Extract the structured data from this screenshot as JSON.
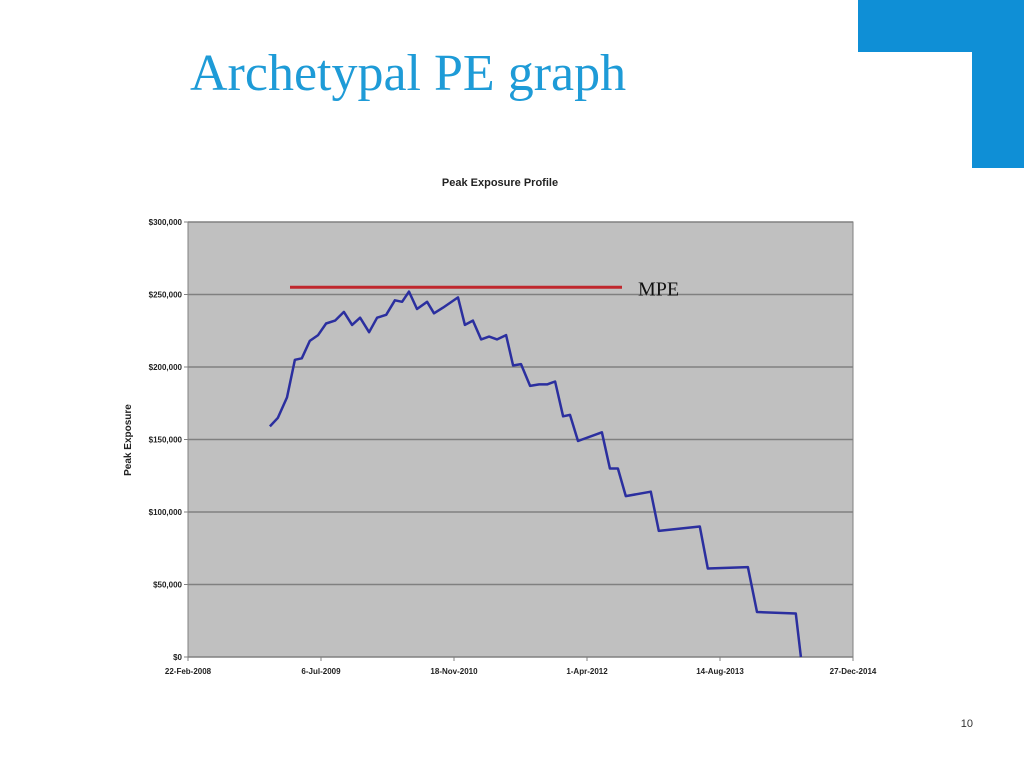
{
  "slide": {
    "title": "Archetypal PE graph",
    "page_number": "10"
  },
  "chart_data": {
    "type": "line",
    "title": "Peak Exposure Profile",
    "y_label": "Peak Exposure",
    "x": [
      39808,
      39838,
      39872,
      39902,
      39928,
      39958,
      39989,
      40019,
      40053,
      40086,
      40117,
      40147,
      40181,
      40211,
      40245,
      40278,
      40305,
      40331,
      40361,
      40399,
      40425,
      40459,
      40515,
      40541,
      40571,
      40602,
      40632,
      40662,
      40696,
      40722,
      40752,
      40786,
      40820,
      40850,
      40880,
      40910,
      40936,
      40966,
      41056,
      41086,
      41116,
      41146,
      41240,
      41270,
      41424,
      41454,
      41605,
      41639,
      41785,
      41804
    ],
    "series": [
      {
        "name": "Peak Exposure",
        "color": "#2b2f9f",
        "values": [
          159000,
          165000,
          179000,
          205000,
          206000,
          218000,
          222000,
          230000,
          232000,
          238000,
          229000,
          234000,
          224000,
          234000,
          236000,
          246000,
          245000,
          252000,
          240000,
          245000,
          237000,
          241000,
          248000,
          229000,
          232000,
          219000,
          221000,
          219000,
          222000,
          201000,
          202000,
          187000,
          188000,
          188000,
          190000,
          166000,
          167000,
          149000,
          155000,
          130000,
          130000,
          111000,
          114000,
          87000,
          90000,
          61000,
          62000,
          31000,
          30000,
          0
        ]
      }
    ],
    "xlim": [
      39500,
      42000
    ],
    "xticks": [
      {
        "value": 39500,
        "label": "22-Feb-2008"
      },
      {
        "value": 40000,
        "label": "6-Jul-2009"
      },
      {
        "value": 40500,
        "label": "18-Nov-2010"
      },
      {
        "value": 41000,
        "label": "1-Apr-2012"
      },
      {
        "value": 41500,
        "label": "14-Aug-2013"
      },
      {
        "value": 42000,
        "label": "27-Dec-2014"
      }
    ],
    "ylim": [
      0,
      300000
    ],
    "yticks": [
      {
        "value": 0,
        "label": "$0"
      },
      {
        "value": 50000,
        "label": "$50,000"
      },
      {
        "value": 100000,
        "label": "$100,000"
      },
      {
        "value": 150000,
        "label": "$150,000"
      },
      {
        "value": 200000,
        "label": "$200,000"
      },
      {
        "value": 250000,
        "label": "$250,000"
      },
      {
        "value": 300000,
        "label": "$300,000"
      }
    ],
    "grid": true,
    "annotation": {
      "label": "MPE",
      "value": 255000,
      "color": "#c0272d"
    }
  }
}
